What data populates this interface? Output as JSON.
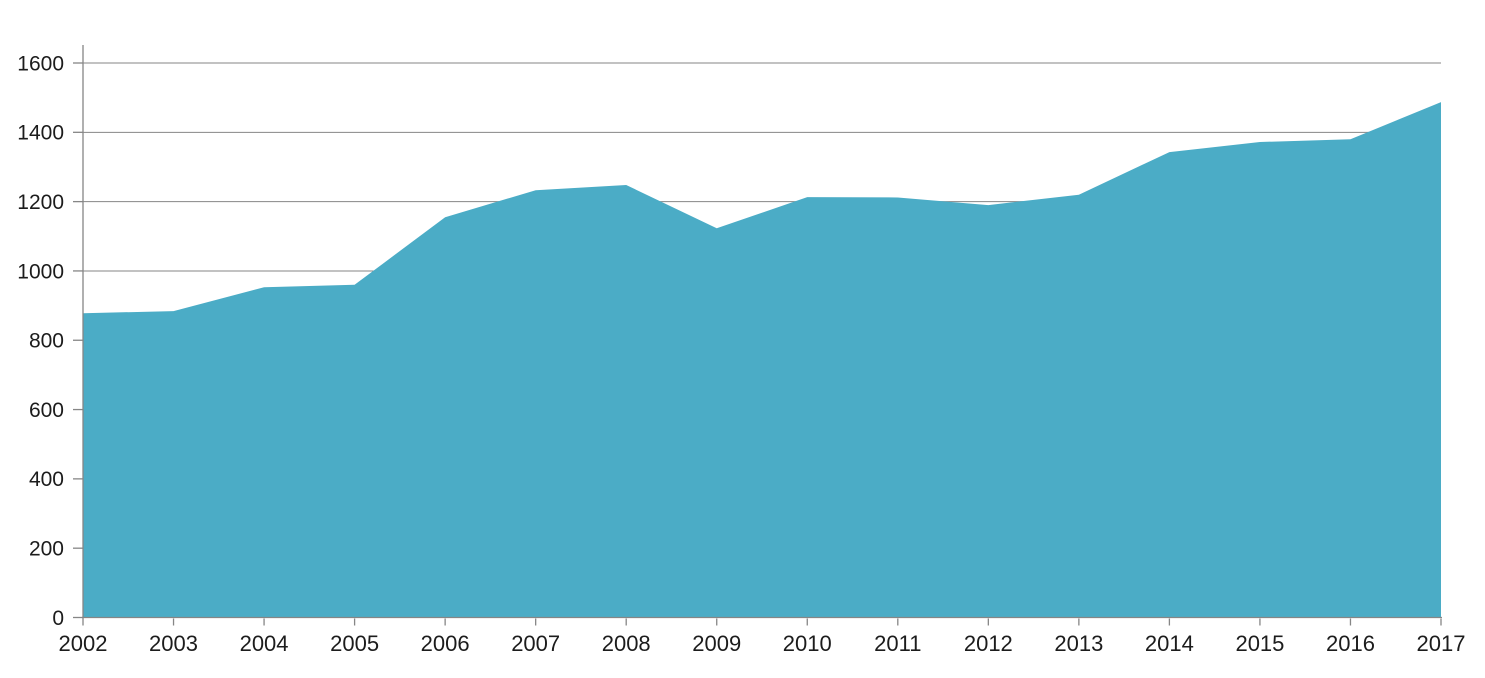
{
  "chart_data": {
    "type": "area",
    "categories": [
      "2002",
      "2003",
      "2004",
      "2005",
      "2006",
      "2007",
      "2008",
      "2009",
      "2010",
      "2011",
      "2012",
      "2013",
      "2014",
      "2015",
      "2016",
      "2017"
    ],
    "values": [
      878,
      884,
      953,
      960,
      1155,
      1233,
      1248,
      1123,
      1213,
      1212,
      1190,
      1220,
      1343,
      1372,
      1380,
      1487
    ],
    "title": "",
    "xlabel": "",
    "ylabel": "",
    "ylim": [
      0,
      1600
    ],
    "ytick_step": 200,
    "yticks": [
      0,
      200,
      400,
      600,
      800,
      1000,
      1200,
      1400,
      1600
    ],
    "grid": "on",
    "legend": "none",
    "colors": {
      "area_fill": "#4BACC6",
      "gridline": "#868686",
      "axis_line": "#868686",
      "tick_label": "#1C1C1C",
      "background": "#FFFFFF"
    }
  }
}
